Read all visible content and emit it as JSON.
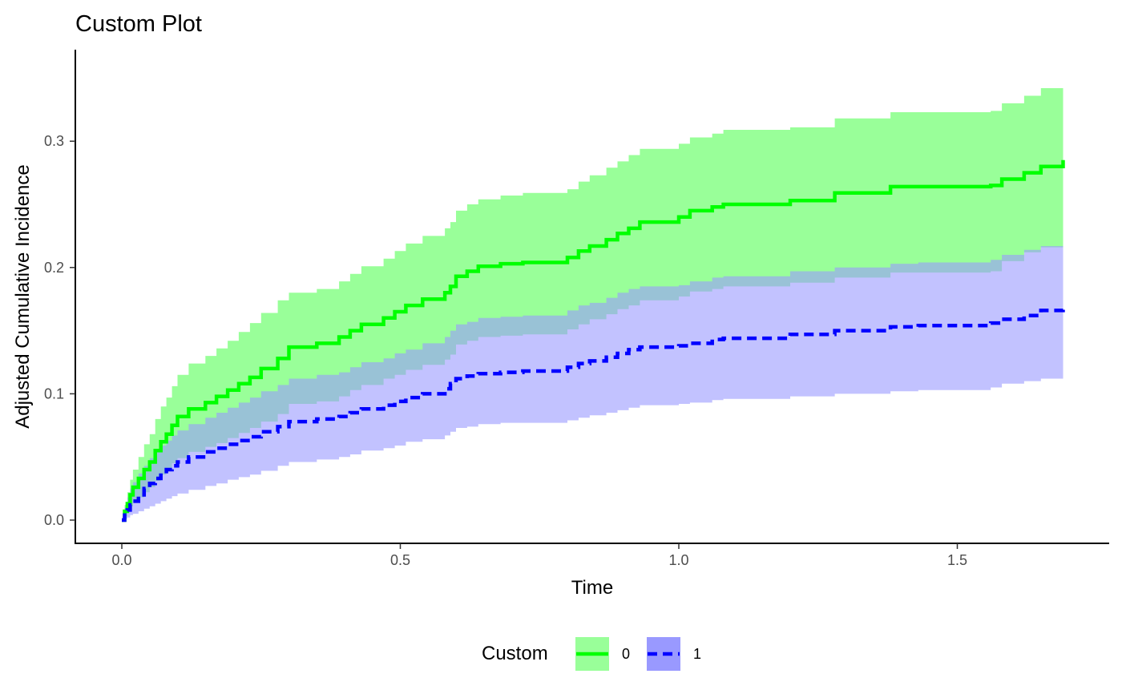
{
  "chart_data": {
    "type": "line",
    "title": "Custom Plot",
    "xlabel": "Time",
    "ylabel": "Adjusted Cumulative Incidence",
    "xlim": [
      0,
      1.7
    ],
    "ylim": [
      0,
      0.35
    ],
    "x_ticks": [
      {
        "value": 0.0,
        "label": "0.0"
      },
      {
        "value": 0.5,
        "label": "0.5"
      },
      {
        "value": 1.0,
        "label": "1.0"
      },
      {
        "value": 1.5,
        "label": "1.5"
      }
    ],
    "y_ticks": [
      {
        "value": 0.0,
        "label": "0.0"
      },
      {
        "value": 0.1,
        "label": "0.1"
      },
      {
        "value": 0.2,
        "label": "0.2"
      },
      {
        "value": 0.3,
        "label": "0.3"
      }
    ],
    "grid": false,
    "legend": {
      "title": "Custom",
      "position": "bottom"
    },
    "colors": {
      "0": "#00ff00",
      "1": "#0000ff",
      "band_0": "#99ff99",
      "band_1": "#9999ff"
    },
    "series": [
      {
        "name": "0",
        "line_style": "solid",
        "color": "#00ff00",
        "band_color": "#99ff99",
        "x": [
          0.0,
          0.005,
          0.01,
          0.015,
          0.02,
          0.03,
          0.04,
          0.05,
          0.06,
          0.07,
          0.08,
          0.09,
          0.1,
          0.12,
          0.15,
          0.17,
          0.19,
          0.21,
          0.23,
          0.25,
          0.28,
          0.3,
          0.35,
          0.39,
          0.41,
          0.43,
          0.47,
          0.49,
          0.51,
          0.54,
          0.58,
          0.59,
          0.6,
          0.62,
          0.64,
          0.68,
          0.72,
          0.8,
          0.82,
          0.84,
          0.87,
          0.89,
          0.91,
          0.93,
          1.0,
          1.02,
          1.06,
          1.08,
          1.2,
          1.28,
          1.38,
          1.43,
          1.56,
          1.58,
          1.62,
          1.65,
          1.69
        ],
        "y": [
          0.0,
          0.007,
          0.013,
          0.02,
          0.026,
          0.033,
          0.04,
          0.046,
          0.055,
          0.062,
          0.068,
          0.075,
          0.082,
          0.088,
          0.093,
          0.098,
          0.103,
          0.108,
          0.113,
          0.12,
          0.128,
          0.137,
          0.14,
          0.145,
          0.15,
          0.155,
          0.16,
          0.165,
          0.17,
          0.175,
          0.18,
          0.185,
          0.193,
          0.197,
          0.201,
          0.203,
          0.204,
          0.208,
          0.213,
          0.217,
          0.222,
          0.227,
          0.231,
          0.236,
          0.24,
          0.245,
          0.248,
          0.25,
          0.253,
          0.259,
          0.264,
          0.264,
          0.265,
          0.27,
          0.275,
          0.28,
          0.285
        ],
        "lower": [
          0.0,
          0.003,
          0.007,
          0.011,
          0.014,
          0.018,
          0.022,
          0.026,
          0.031,
          0.036,
          0.04,
          0.045,
          0.049,
          0.054,
          0.058,
          0.061,
          0.065,
          0.069,
          0.073,
          0.078,
          0.084,
          0.092,
          0.094,
          0.098,
          0.103,
          0.107,
          0.112,
          0.115,
          0.119,
          0.123,
          0.127,
          0.131,
          0.139,
          0.142,
          0.145,
          0.146,
          0.147,
          0.151,
          0.155,
          0.159,
          0.163,
          0.167,
          0.17,
          0.174,
          0.177,
          0.181,
          0.183,
          0.185,
          0.188,
          0.192,
          0.196,
          0.196,
          0.197,
          0.205,
          0.212,
          0.216,
          0.221
        ],
        "upper": [
          0.0,
          0.012,
          0.022,
          0.032,
          0.04,
          0.05,
          0.06,
          0.068,
          0.08,
          0.09,
          0.097,
          0.106,
          0.115,
          0.124,
          0.13,
          0.136,
          0.142,
          0.149,
          0.156,
          0.164,
          0.174,
          0.18,
          0.183,
          0.189,
          0.195,
          0.201,
          0.207,
          0.213,
          0.219,
          0.225,
          0.231,
          0.236,
          0.245,
          0.25,
          0.254,
          0.257,
          0.259,
          0.262,
          0.268,
          0.273,
          0.279,
          0.284,
          0.289,
          0.294,
          0.298,
          0.303,
          0.306,
          0.309,
          0.311,
          0.318,
          0.323,
          0.323,
          0.324,
          0.33,
          0.336,
          0.342,
          0.347
        ]
      },
      {
        "name": "1",
        "line_style": "dashed",
        "color": "#0000ff",
        "band_color": "#9999ff",
        "x": [
          0.0,
          0.005,
          0.01,
          0.015,
          0.02,
          0.03,
          0.04,
          0.05,
          0.06,
          0.07,
          0.08,
          0.09,
          0.1,
          0.12,
          0.15,
          0.17,
          0.19,
          0.21,
          0.23,
          0.25,
          0.28,
          0.3,
          0.35,
          0.39,
          0.41,
          0.43,
          0.47,
          0.49,
          0.51,
          0.54,
          0.58,
          0.59,
          0.6,
          0.62,
          0.64,
          0.68,
          0.72,
          0.8,
          0.82,
          0.84,
          0.87,
          0.89,
          0.91,
          0.93,
          1.0,
          1.02,
          1.06,
          1.08,
          1.2,
          1.28,
          1.38,
          1.43,
          1.56,
          1.58,
          1.62,
          1.65,
          1.69
        ],
        "y": [
          0.0,
          0.004,
          0.008,
          0.012,
          0.015,
          0.02,
          0.025,
          0.029,
          0.033,
          0.037,
          0.04,
          0.043,
          0.046,
          0.05,
          0.054,
          0.057,
          0.06,
          0.063,
          0.066,
          0.07,
          0.074,
          0.078,
          0.08,
          0.082,
          0.085,
          0.088,
          0.091,
          0.094,
          0.097,
          0.1,
          0.104,
          0.108,
          0.112,
          0.114,
          0.116,
          0.117,
          0.118,
          0.121,
          0.124,
          0.126,
          0.129,
          0.132,
          0.135,
          0.137,
          0.138,
          0.14,
          0.143,
          0.144,
          0.147,
          0.15,
          0.153,
          0.154,
          0.156,
          0.159,
          0.162,
          0.166,
          0.169
        ],
        "lower": [
          0.0,
          0.001,
          0.002,
          0.004,
          0.005,
          0.007,
          0.009,
          0.011,
          0.013,
          0.015,
          0.017,
          0.019,
          0.021,
          0.024,
          0.027,
          0.029,
          0.032,
          0.034,
          0.036,
          0.039,
          0.043,
          0.046,
          0.048,
          0.05,
          0.052,
          0.055,
          0.057,
          0.059,
          0.062,
          0.064,
          0.067,
          0.07,
          0.073,
          0.074,
          0.076,
          0.077,
          0.077,
          0.079,
          0.081,
          0.083,
          0.085,
          0.087,
          0.089,
          0.091,
          0.092,
          0.093,
          0.095,
          0.096,
          0.098,
          0.1,
          0.102,
          0.103,
          0.105,
          0.108,
          0.11,
          0.112,
          0.114
        ],
        "upper": [
          0.0,
          0.01,
          0.018,
          0.025,
          0.03,
          0.037,
          0.043,
          0.049,
          0.054,
          0.059,
          0.063,
          0.067,
          0.071,
          0.076,
          0.081,
          0.085,
          0.089,
          0.093,
          0.097,
          0.102,
          0.107,
          0.112,
          0.115,
          0.117,
          0.121,
          0.125,
          0.128,
          0.132,
          0.135,
          0.14,
          0.145,
          0.15,
          0.155,
          0.157,
          0.16,
          0.161,
          0.162,
          0.166,
          0.17,
          0.172,
          0.176,
          0.18,
          0.183,
          0.185,
          0.186,
          0.189,
          0.192,
          0.193,
          0.197,
          0.2,
          0.203,
          0.204,
          0.206,
          0.21,
          0.214,
          0.217,
          0.22
        ]
      }
    ]
  }
}
